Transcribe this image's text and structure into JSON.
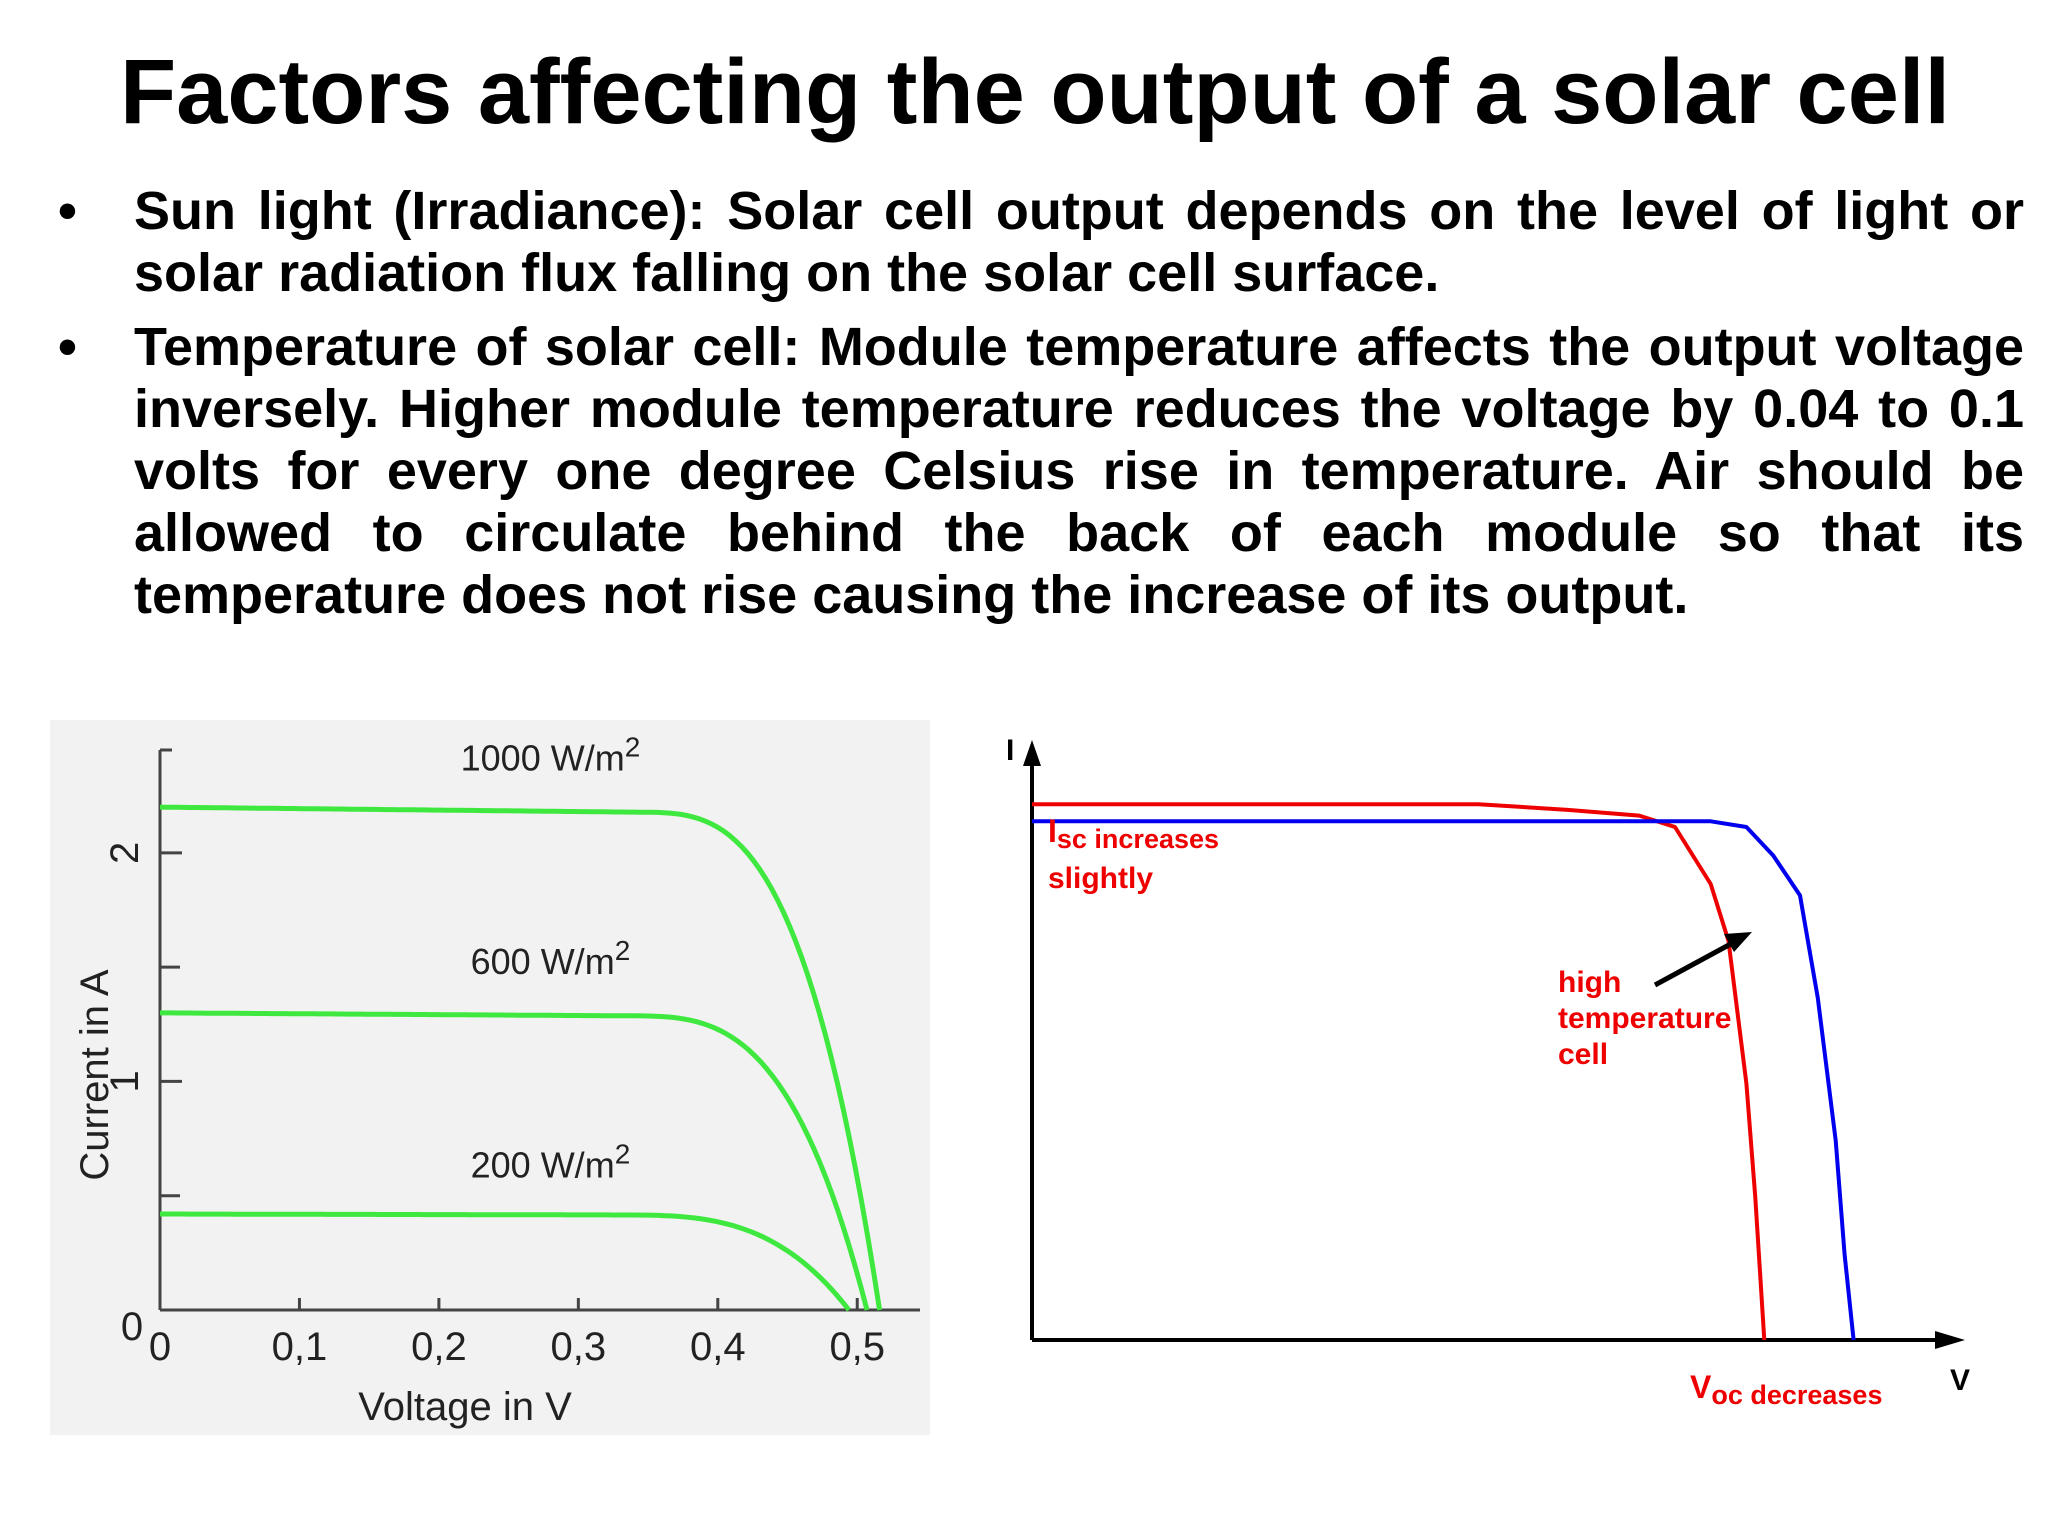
{
  "slide": {
    "title": "Factors affecting the output of a solar cell",
    "bullets": [
      {
        "marker": "•",
        "text": "Sun light (Irradiance): Solar cell output depends on the level of light or solar radiation flux falling on the solar cell surface."
      },
      {
        "marker": "•",
        "text": "Temperature of solar cell: Module temperature affects the output voltage inversely. Higher module temperature reduces the voltage by 0.04 to 0.1 volts for every one degree Celsius rise in temperature. Air should be allowed to circulate behind the back of each module so that its temperature does not rise causing the increase of its output."
      }
    ]
  },
  "chart_data": [
    {
      "type": "line",
      "xlabel": "Voltage in V",
      "ylabel": "Current in A",
      "xlim": [
        0,
        0.545
      ],
      "ylim": [
        0,
        2.45
      ],
      "x_ticks": [
        "0",
        "0,1",
        "0,2",
        "0,3",
        "0,4",
        "0,5"
      ],
      "y_ticks": [
        "0",
        "1",
        "2"
      ],
      "origin_label": "0",
      "line_color": "#3ee83e",
      "background": "#f2f2f2",
      "series": [
        {
          "name": "1000 W/m",
          "sup": "2",
          "isc": 2.2,
          "voc": 0.516,
          "knee": 0.455,
          "label_at": [
            0.28,
            2.36
          ]
        },
        {
          "name": "600 W/m",
          "sup": "2",
          "isc": 1.3,
          "voc": 0.507,
          "knee": 0.445,
          "label_at": [
            0.28,
            1.47
          ]
        },
        {
          "name": "200 W/m",
          "sup": "2",
          "isc": 0.42,
          "voc": 0.494,
          "knee": 0.435,
          "label_at": [
            0.28,
            0.58
          ]
        }
      ]
    },
    {
      "type": "line",
      "xlabel": "V",
      "ylabel": "I",
      "xlim": [
        0,
        1
      ],
      "ylim": [
        0,
        1
      ],
      "series": [
        {
          "color": "#ee0000",
          "points": [
            [
              0,
              0.94
            ],
            [
              0.5,
              0.94
            ],
            [
              0.6,
              0.93
            ],
            [
              0.68,
              0.92
            ],
            [
              0.72,
              0.9
            ],
            [
              0.76,
              0.8
            ],
            [
              0.78,
              0.7
            ],
            [
              0.8,
              0.45
            ],
            [
              0.81,
              0.25
            ],
            [
              0.82,
              0
            ]
          ]
        },
        {
          "color": "#0000ee",
          "points": [
            [
              0,
              0.91
            ],
            [
              0.5,
              0.91
            ],
            [
              0.68,
              0.91
            ],
            [
              0.76,
              0.91
            ],
            [
              0.8,
              0.9
            ],
            [
              0.83,
              0.85
            ],
            [
              0.86,
              0.78
            ],
            [
              0.88,
              0.6
            ],
            [
              0.9,
              0.35
            ],
            [
              0.91,
              0.15
            ],
            [
              0.92,
              0
            ]
          ]
        }
      ],
      "annotations": {
        "isc_main": "I",
        "isc_sub": "sc increases",
        "isc_line2": "slightly",
        "voc_main": "V",
        "voc_sub": "oc decreases",
        "high_temp": [
          "high",
          "temperature",
          "cell"
        ],
        "color": "#ee0000"
      }
    }
  ]
}
